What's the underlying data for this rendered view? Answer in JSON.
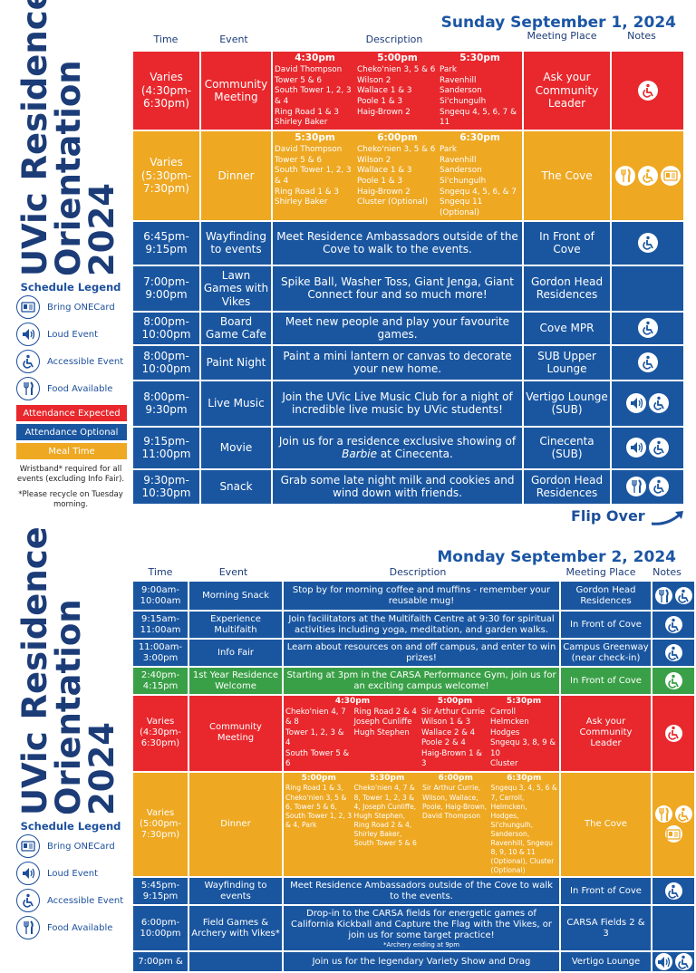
{
  "colors": {
    "red": "#e8282d",
    "blue": "#1a56a0",
    "orange": "#eea822",
    "green": "#3aa047",
    "title": "#1c3c78"
  },
  "title_lines": [
    "UVic Residence",
    "Orientation",
    "2024"
  ],
  "headers": {
    "time": "Time",
    "event": "Event",
    "description": "Description",
    "meeting": "Meeting Place",
    "notes": "Notes"
  },
  "legend": {
    "title": "Schedule Legend",
    "items": [
      {
        "icon": "card",
        "label": "Bring ONECard"
      },
      {
        "icon": "loud",
        "label": "Loud Event"
      },
      {
        "icon": "access",
        "label": "Accessible Event"
      },
      {
        "icon": "food",
        "label": "Food Available"
      }
    ],
    "bars": [
      {
        "label": "Attendance Expected",
        "color": "red"
      },
      {
        "label": "Attendance Optional",
        "color": "blue"
      },
      {
        "label": "Meal Time",
        "color": "orange"
      }
    ],
    "note1": "Wristband* required for all events (excluding Info Fair).",
    "note2": "*Please recycle on Tuesday morning."
  },
  "flip_over": "Flip Over",
  "day1": {
    "date": "Sunday September 1, 2024",
    "rows": [
      {
        "color": "red",
        "time": "Varies (4:30pm-6:30pm)",
        "event": "Community Meeting",
        "groups": [
          {
            "time": "4:30pm",
            "cols": [
              [
                "David Thompson",
                "Tower 5 & 6",
                "South Tower 1, 2, 3 & 4",
                "Ring Road 1 & 3",
                "Shirley Baker"
              ]
            ]
          },
          {
            "time": "5:00pm",
            "cols": [
              [
                "Cheko'nien 3, 5 & 6",
                "Wilson 2",
                "Wallace 1 & 3",
                "Poole 1 & 3",
                "Haig-Brown 2"
              ]
            ]
          },
          {
            "time": "5:30pm",
            "cols": [
              [
                "Park",
                "Ravenhill",
                "Sanderson",
                "Si'chungulh",
                "Sngequ 4, 5, 6, 7 & 11"
              ]
            ]
          }
        ],
        "meeting": "Ask your Community Leader",
        "notes": [
          "access"
        ]
      },
      {
        "color": "orange",
        "time": "Varies (5:30pm-7:30pm)",
        "event": "Dinner",
        "groups": [
          {
            "time": "5:30pm",
            "cols": [
              [
                "David Thompson",
                "Tower 5 & 6",
                "South Tower 1, 2, 3 & 4",
                "Ring Road 1 & 3",
                "Shirley Baker"
              ]
            ]
          },
          {
            "time": "6:00pm",
            "cols": [
              [
                "Cheko'nien 3, 5 & 6",
                "Wilson 2",
                "Wallace 1 & 3",
                "Poole 1 & 3",
                "Haig-Brown 2",
                "Cluster (Optional)"
              ]
            ]
          },
          {
            "time": "6:30pm",
            "cols": [
              [
                "Park",
                "Ravenhill",
                "Sanderson",
                "Si'chungulh",
                "Sngequ 4, 5, 6, & 7",
                "Sngequ 11 (Optional)"
              ]
            ]
          }
        ],
        "meeting": "The Cove",
        "notes": [
          "food",
          "access",
          "card"
        ]
      },
      {
        "color": "blue",
        "time": "6:45pm-9:15pm",
        "event": "Wayfinding to events",
        "desc": [
          {
            "t": "Meet Residence Ambassadors outside of the Cove to walk to the events."
          }
        ],
        "meeting": "In Front of Cove",
        "notes": [
          "access"
        ]
      },
      {
        "color": "blue",
        "time": "7:00pm-9:00pm",
        "event": "Lawn Games with Vikes",
        "desc": [
          {
            "t": "Spike Ball, Washer Toss, Giant Jenga, Giant Connect four and so much more!"
          }
        ],
        "meeting": "Gordon Head Residences",
        "notes": []
      },
      {
        "color": "blue",
        "time": "8:00pm-10:00pm",
        "event": "Board Game Cafe",
        "desc": [
          {
            "t": "Meet new people and play your favourite games."
          }
        ],
        "meeting": "Cove MPR",
        "notes": [
          "access"
        ]
      },
      {
        "color": "blue",
        "time": "8:00pm-10:00pm",
        "event": "Paint Night",
        "desc": [
          {
            "t": "Paint a mini lantern or canvas to decorate your new home."
          }
        ],
        "meeting": "SUB Upper Lounge",
        "notes": [
          "access"
        ]
      },
      {
        "color": "blue",
        "time": "8:00pm-9:30pm",
        "event": "Live Music",
        "desc": [
          {
            "t": "Join the UVic Live Music Club for a night of incredible live music by UVic students!"
          }
        ],
        "meeting": "Vertigo Lounge (SUB)",
        "notes": [
          "loud",
          "access"
        ]
      },
      {
        "color": "blue",
        "time": "9:15pm-11:00pm",
        "event": "Movie",
        "desc": [
          {
            "t": "Join us for a residence exclusive showing of "
          },
          {
            "t": "Barbie",
            "em": true
          },
          {
            "t": " at Cinecenta."
          }
        ],
        "meeting": "Cinecenta (SUB)",
        "notes": [
          "loud",
          "access"
        ]
      },
      {
        "color": "blue",
        "time": "9:30pm-10:30pm",
        "event": "Snack",
        "desc": [
          {
            "t": "Grab some late night milk and cookies and wind down with friends."
          }
        ],
        "meeting": "Gordon Head Residences",
        "notes": [
          "food",
          "access"
        ]
      }
    ]
  },
  "day2": {
    "date": "Monday September 2, 2024",
    "rows": [
      {
        "color": "blue",
        "time": "9:00am-10:00am",
        "event": "Morning Snack",
        "desc": [
          {
            "t": "Stop by for morning coffee and muffins - remember your reusable mug!"
          }
        ],
        "meeting": "Gordon Head Residences",
        "notes": [
          "food",
          "access"
        ]
      },
      {
        "color": "blue",
        "time": "9:15am-11:00am",
        "event": "Experience Multifaith",
        "desc": [
          {
            "t": "Join facilitators at the Multifaith Centre at 9:30 for spiritual activities including yoga, meditation, and garden walks."
          }
        ],
        "meeting": "In Front of Cove",
        "notes": [
          "access"
        ]
      },
      {
        "color": "blue",
        "time": "11:00am-3:00pm",
        "event": "Info Fair",
        "desc": [
          {
            "t": "Learn about resources on and off campus, and enter to win prizes!"
          }
        ],
        "meeting": "Campus Greenway (near check-in)",
        "notes": [
          "access"
        ]
      },
      {
        "color": "green",
        "time": "2:40pm-4:15pm",
        "event": "1st Year Residence Welcome",
        "desc": [
          {
            "t": "Starting at 3pm in the CARSA Performance Gym, join us for an exciting campus welcome!"
          }
        ],
        "meeting": "In Front of Cove",
        "notes": [
          "access"
        ]
      },
      {
        "color": "red",
        "time": "Varies (4:30pm-6:30pm)",
        "event": "Community Meeting",
        "groups": [
          {
            "time": "4:30pm",
            "cols": [
              [
                "Cheko'nien 4, 7 & 8",
                "Tower 1, 2, 3 & 4",
                "South Tower 5 & 6"
              ],
              [
                "Ring Road 2 & 4",
                "Joseph Cunliffe",
                "Hugh Stephen"
              ]
            ]
          },
          {
            "time": "5:00pm",
            "cols": [
              [
                "Sir Arthur Currie",
                "Wilson 1 & 3",
                "Wallace 2 & 4",
                "Poole 2 & 4",
                "Haig-Brown 1 & 3"
              ]
            ]
          },
          {
            "time": "5:30pm",
            "cols": [
              [
                "Carroll",
                "Helmcken",
                "Hodges",
                "Sngequ 3, 8, 9 & 10",
                "Cluster"
              ]
            ]
          }
        ],
        "meeting": "Ask your Community Leader",
        "notes": [
          "access"
        ]
      },
      {
        "color": "orange",
        "time": "Varies (5:00pm-7:30pm)",
        "event": "Dinner",
        "groups": [
          {
            "time": "5:00pm",
            "cols": [
              [
                "Ring Road 1 & 3, Cheko'nien 3, 5 & 6, Tower 5 & 6, South Tower 1, 2, 3 & 4, Park"
              ]
            ]
          },
          {
            "time": "5:30pm",
            "cols": [
              [
                "Cheko'nien 4, 7 & 8, Tower 1, 2, 3 & 4, Joseph Cunliffe, Hugh Stephen, Ring Road 2 & 4, Shirley Baker, South Tower 5 & 6"
              ]
            ]
          },
          {
            "time": "6:00pm",
            "cols": [
              [
                "Sir Arthur Currie, Wilson, Wallace, Poole, Haig-Brown, David Thompson"
              ]
            ]
          },
          {
            "time": "6:30pm",
            "cols": [
              [
                "Sngequ 3, 4, 5, 6 & 7, Carroll, Helmcken, Hodges, Si'chungulh, Sanderson, Ravenhill, Sngequ 8, 9, 10 & 11 (Optional), Cluster (Optional)"
              ]
            ]
          }
        ],
        "meeting": "The Cove",
        "notes": [
          "food",
          "access",
          "card"
        ]
      },
      {
        "color": "blue",
        "time": "5:45pm-9:15pm",
        "event": "Wayfinding to events",
        "desc": [
          {
            "t": "Meet Residence Ambassadors outside of the Cove to walk to the events."
          }
        ],
        "meeting": "In Front of Cove",
        "notes": [
          "access"
        ]
      },
      {
        "color": "blue",
        "time": "6:00pm-10:00pm",
        "event": "Field Games & Archery with Vikes*",
        "desc": [
          {
            "t": "Drop-in to the CARSA fields for energetic games of California Kickball and Capture the Flag with the Vikes, or join us for some target practice!"
          }
        ],
        "desc_note": "*Archery ending at 9pm",
        "meeting": "CARSA Fields 2 & 3",
        "notes": []
      },
      {
        "color": "blue",
        "time": "7:00pm &",
        "event": "",
        "desc": [
          {
            "t": "Join us for the legendary Variety Show and Drag"
          }
        ],
        "meeting": "Vertigo Lounge",
        "notes": [
          "loud",
          "access"
        ]
      }
    ]
  }
}
